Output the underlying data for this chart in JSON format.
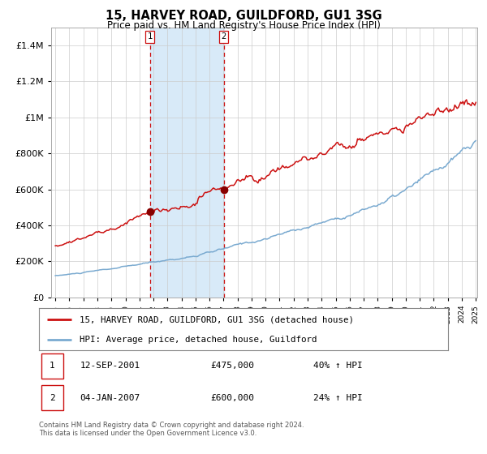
{
  "title": "15, HARVEY ROAD, GUILDFORD, GU1 3SG",
  "subtitle": "Price paid vs. HM Land Registry's House Price Index (HPI)",
  "legend_line1": "15, HARVEY ROAD, GUILDFORD, GU1 3SG (detached house)",
  "legend_line2": "HPI: Average price, detached house, Guildford",
  "transaction1_date": "12-SEP-2001",
  "transaction1_price": 475000,
  "transaction1_price_str": "£475,000",
  "transaction1_hpi": "40% ↑ HPI",
  "transaction2_date": "04-JAN-2007",
  "transaction2_price": 600000,
  "transaction2_price_str": "£600,000",
  "transaction2_hpi": "24% ↑ HPI",
  "footer": "Contains HM Land Registry data © Crown copyright and database right 2024.\nThis data is licensed under the Open Government Licence v3.0.",
  "hpi_color": "#7aaad0",
  "price_color": "#cc1111",
  "dot_color": "#880000",
  "shade_color": "#d8eaf8",
  "vline_color": "#cc1111",
  "legend_border_color": "#888888",
  "box_border_color": "#cc1111",
  "ylim": [
    0,
    1500000
  ],
  "yticks": [
    0,
    200000,
    400000,
    600000,
    800000,
    1000000,
    1200000,
    1400000
  ],
  "start_year": 1995,
  "end_year": 2025,
  "t1_year": 2001.75,
  "t2_year": 2007.02
}
